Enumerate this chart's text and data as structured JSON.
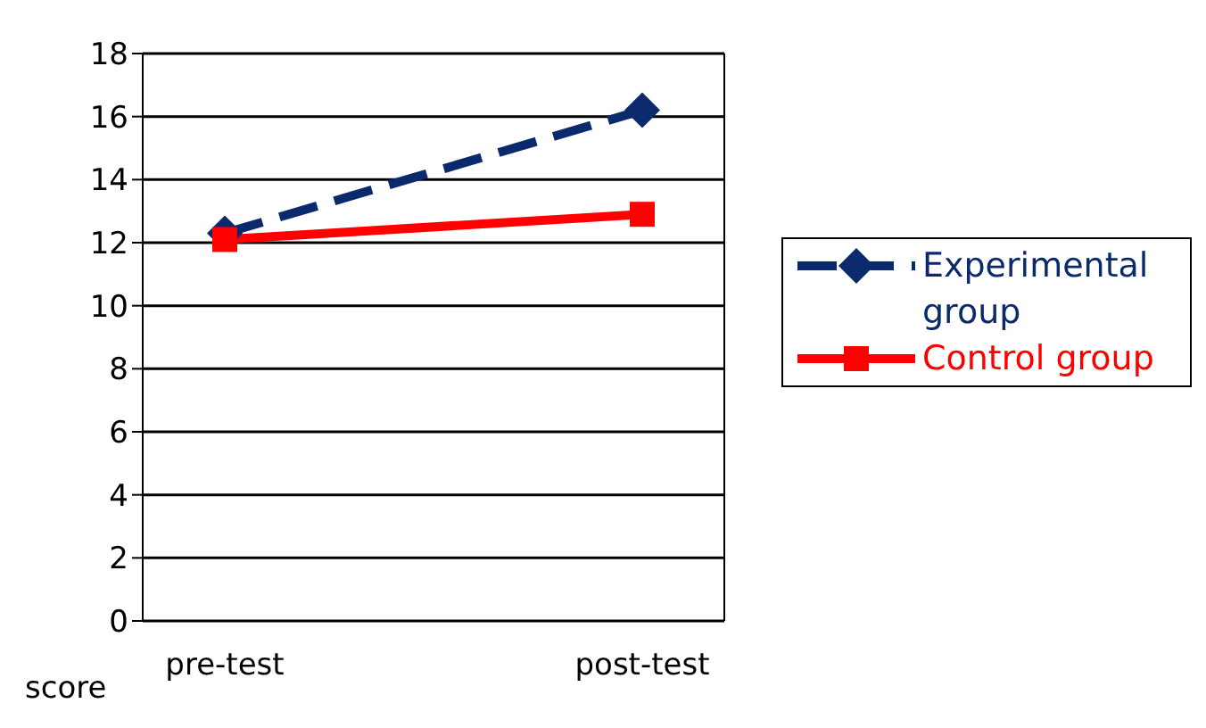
{
  "chart_data": {
    "type": "line",
    "ylabel": "score",
    "categories": [
      "pre-test",
      "post-test"
    ],
    "series": [
      {
        "name": "Experimental group",
        "color": "#0b2a6e",
        "values": [
          12.3,
          16.2
        ],
        "marker": "diamond",
        "line_style": "dashed"
      },
      {
        "name": "Control group",
        "color": "#ff0000",
        "values": [
          12.1,
          12.9
        ],
        "marker": "square",
        "line_style": "solid"
      }
    ],
    "ylim": [
      0,
      18
    ],
    "yticks": [
      0,
      2,
      4,
      6,
      8,
      10,
      12,
      14,
      16,
      18
    ],
    "grid": "y",
    "legend": "right"
  }
}
